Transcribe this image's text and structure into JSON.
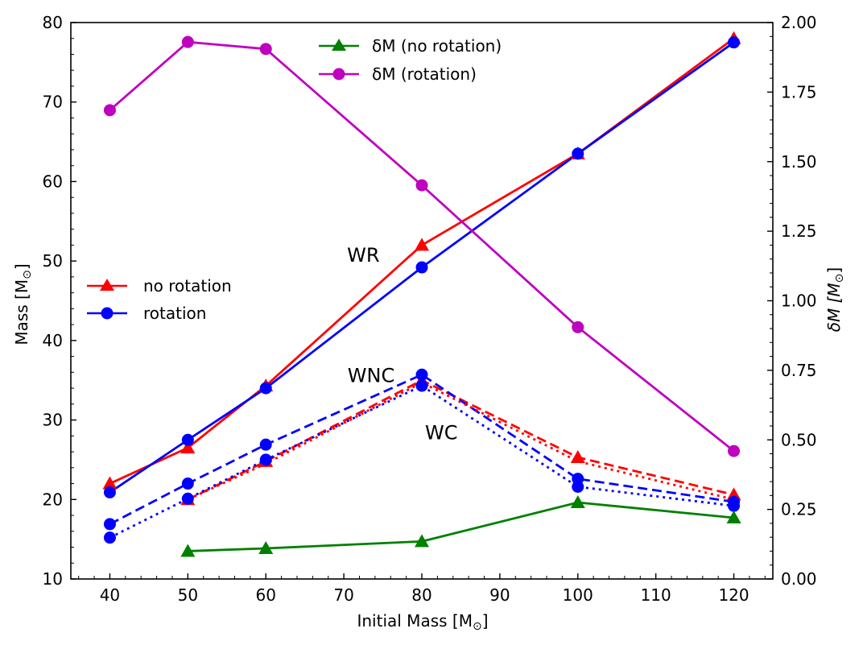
{
  "chart_data": {
    "type": "line",
    "x": [
      40,
      50,
      60,
      80,
      100,
      120
    ],
    "xlabel_text": "Initial Mass [M",
    "xlabel_sub": "⊙",
    "xlabel_close": "]",
    "ylabel_text": "Mass [M",
    "ylabel_sub": "⊙",
    "ylabel_close": "]",
    "y2label_text": "δM [M",
    "y2label_sub": "⊙",
    "y2label_close": "]",
    "xlim": [
      35,
      125
    ],
    "ylim": [
      10,
      80
    ],
    "y2lim": [
      0,
      2
    ],
    "x_ticks": [
      "40",
      "50",
      "60",
      "70",
      "80",
      "90",
      "100",
      "110",
      "120"
    ],
    "y_ticks": [
      "10",
      "20",
      "30",
      "40",
      "50",
      "60",
      "70",
      "80"
    ],
    "y2_ticks": [
      "0.00",
      "0.25",
      "0.50",
      "0.75",
      "1.00",
      "1.25",
      "1.50",
      "1.75",
      "2.00"
    ],
    "grid": false,
    "legend_left": [
      "no rotation",
      "rotation"
    ],
    "legend_top": [
      "δM (no rotation)",
      "δM (rotation)"
    ],
    "annotations": [
      {
        "text": "WR",
        "x": 72.5,
        "y": 50.8
      },
      {
        "text": "WNC",
        "x": 73.5,
        "y": 35.7
      },
      {
        "text": "WC",
        "x": 82.5,
        "y": 28.5
      }
    ],
    "series": [
      {
        "key": "wr_norot",
        "axis": "left",
        "color": "#ff0000",
        "style": "solid",
        "marker": "triangle",
        "x": [
          40,
          50,
          60,
          80,
          100,
          120
        ],
        "values": [
          22.0,
          26.5,
          34.3,
          52.0,
          63.5,
          78.0
        ]
      },
      {
        "key": "wr_rot",
        "axis": "left",
        "color": "#0000ff",
        "style": "solid",
        "marker": "circle",
        "x": [
          40,
          50,
          60,
          80,
          100,
          120
        ],
        "values": [
          20.9,
          27.5,
          34.0,
          49.2,
          63.5,
          77.5
        ]
      },
      {
        "key": "wnc_norot",
        "axis": "left",
        "color": "#ff0000",
        "style": "dashed",
        "marker": "triangle",
        "x": [
          50,
          60,
          80,
          100,
          120
        ],
        "values": [
          20.0,
          24.8,
          35.0,
          25.3,
          20.6
        ]
      },
      {
        "key": "wnc_rot",
        "axis": "left",
        "color": "#0000ff",
        "style": "dashed",
        "marker": "circle",
        "x": [
          40,
          50,
          60,
          80,
          100,
          120
        ],
        "values": [
          16.9,
          22.0,
          26.9,
          35.7,
          22.6,
          19.7
        ]
      },
      {
        "key": "wc_norot",
        "axis": "left",
        "color": "#ff0000",
        "style": "dotted",
        "marker": "none",
        "x": [
          50,
          60,
          80,
          100,
          120
        ],
        "values": [
          20.0,
          24.5,
          34.7,
          24.8,
          20.0
        ]
      },
      {
        "key": "wc_rot",
        "axis": "left",
        "color": "#0000ff",
        "style": "dotted",
        "marker": "circle",
        "x": [
          40,
          50,
          60,
          80,
          100,
          120
        ],
        "values": [
          15.2,
          20.1,
          25.0,
          34.3,
          21.6,
          19.2
        ]
      },
      {
        "key": "dm_norot",
        "axis": "right",
        "color": "#008000",
        "style": "solid",
        "marker": "triangle",
        "x": [
          50,
          60,
          80,
          100,
          120
        ],
        "values": [
          0.1,
          0.11,
          0.135,
          0.275,
          0.22
        ]
      },
      {
        "key": "dm_rot",
        "axis": "right",
        "color": "#bf00bf",
        "style": "solid",
        "marker": "circle",
        "x": [
          40,
          50,
          60,
          80,
          100,
          120
        ],
        "values": [
          1.685,
          1.93,
          1.905,
          1.415,
          0.905,
          0.46
        ]
      }
    ]
  }
}
